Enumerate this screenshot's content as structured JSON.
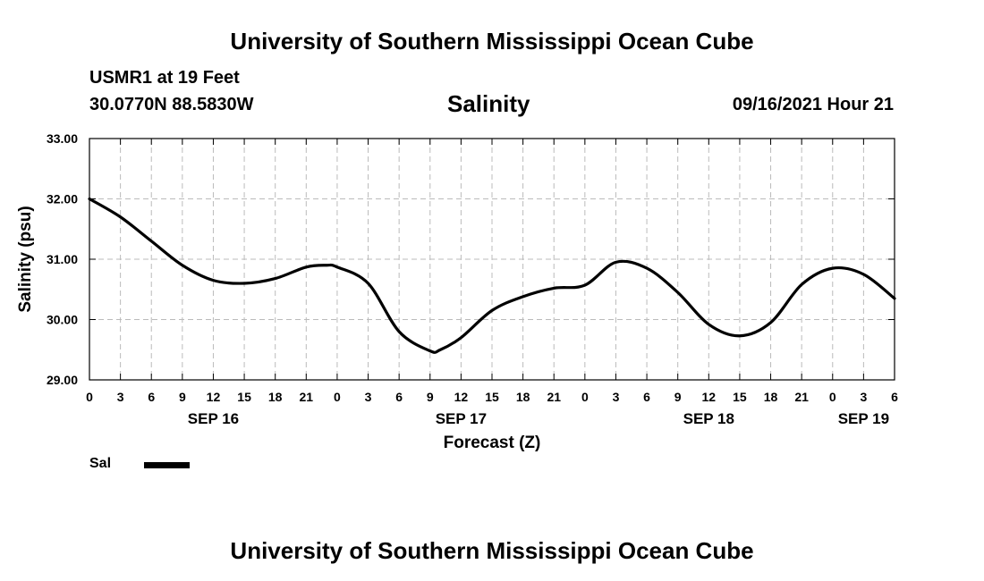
{
  "header": {
    "title": "University of Southern Mississippi Ocean Cube",
    "station": "USMR1 at 19 Feet",
    "coords": "30.0770N  88.5830W",
    "datetime": "09/16/2021 Hour 21"
  },
  "footer": {
    "title": "University of Southern Mississippi Ocean Cube"
  },
  "chart_data": {
    "type": "line",
    "title": "Salinity",
    "xlabel": "Forecast (Z)",
    "ylabel": "Salinity (psu)",
    "ylim": [
      29.0,
      33.0
    ],
    "xlim_hours": [
      0,
      78
    ],
    "y_ticks": [
      "29.00",
      "30.00",
      "31.00",
      "32.00",
      "33.00"
    ],
    "x_tick_labels": [
      "0",
      "3",
      "6",
      "9",
      "12",
      "15",
      "18",
      "21",
      "0",
      "3",
      "6",
      "9",
      "12",
      "15",
      "18",
      "21",
      "0",
      "3",
      "6",
      "9",
      "12",
      "15",
      "18",
      "21",
      "0",
      "3",
      "6"
    ],
    "date_labels": [
      {
        "label": "SEP 16",
        "hour": 12
      },
      {
        "label": "SEP 17",
        "hour": 36
      },
      {
        "label": "SEP 18",
        "hour": 60
      },
      {
        "label": "SEP 19",
        "hour": 75
      }
    ],
    "grid": true,
    "legend": [
      {
        "name": "Sal",
        "color": "#000000"
      }
    ],
    "series": [
      {
        "name": "Sal",
        "x": [
          0,
          3,
          6,
          9,
          12,
          15,
          18,
          21,
          23,
          24,
          27,
          30,
          33,
          34,
          36,
          39,
          42,
          45,
          48,
          51,
          54,
          57,
          60,
          63,
          66,
          69,
          72,
          75,
          78
        ],
        "values": [
          32.0,
          31.7,
          31.3,
          30.9,
          30.65,
          30.6,
          30.68,
          30.87,
          30.9,
          30.87,
          30.6,
          29.8,
          29.48,
          29.5,
          29.7,
          30.15,
          30.38,
          30.52,
          30.57,
          30.95,
          30.85,
          30.45,
          29.92,
          29.73,
          29.95,
          30.58,
          30.85,
          30.75,
          30.35
        ]
      }
    ]
  }
}
